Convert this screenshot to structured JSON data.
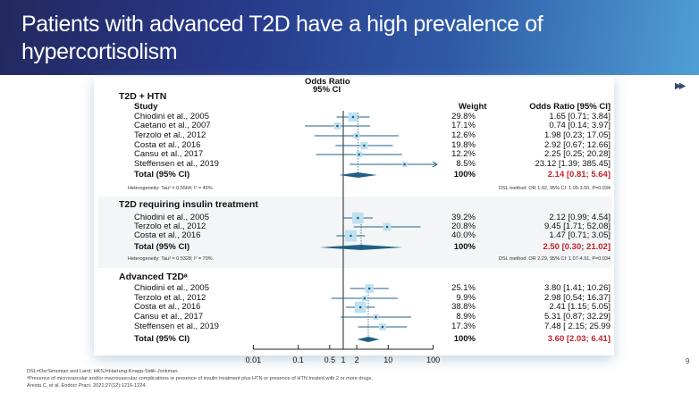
{
  "title": "Patients with advanced T2D have a high prevalence of hypercortisolism",
  "page_number": "9",
  "next_icon": "fast-forward-icon",
  "footnotes": [
    "DSL=DerSimonian and Laird; HKSJ=Hartung-Knapp-Sidik-Jonkman.",
    "ᵃPresence of microvascular and/or macrovascular complications or presence of insulin treatment plus HTN or presence of HTN treated with 2 or more drugs.",
    "Aresta C, et al. Endocr Pract. 2021;27(12):1216-1224."
  ],
  "chart_data": {
    "type": "forest",
    "title": "Odds Ratio",
    "subtitle": "95% CI",
    "study_header": "Study",
    "weight_header": "Weight",
    "or_header": "Odds Ratio [95% CI]",
    "x_scale": "log",
    "xlim": [
      0.01,
      100
    ],
    "x_ticks": [
      "0.01",
      "0.1",
      "0.5",
      "1",
      "2",
      "10",
      "100"
    ],
    "x_tick_values": [
      0.01,
      0.1,
      0.5,
      1,
      2,
      10,
      100
    ],
    "colors": {
      "marker": "#1f5f86",
      "box": "#bfe0f0",
      "pooled": "#1f5f86",
      "total_text": "#c0252b"
    },
    "sections": [
      {
        "name": "T2D + HTN",
        "studies": [
          {
            "study": "Chiodini et al., 2005",
            "weight": "29.8%",
            "or": 1.65,
            "lo": 0.71,
            "hi": 3.84,
            "label": "1.65 [0.71; 3.84]"
          },
          {
            "study": "Caetano et al., 2007",
            "weight": "17.1%",
            "or": 0.74,
            "lo": 0.14,
            "hi": 3.97,
            "label": "0.74 [0.14; 3.97]"
          },
          {
            "study": "Terzolo et al., 2012",
            "weight": "12.6%",
            "or": 1.98,
            "lo": 0.23,
            "hi": 17.05,
            "label": "1.98 [0.23; 17.05]"
          },
          {
            "study": "Costa et al., 2016",
            "weight": "19.8%",
            "or": 2.92,
            "lo": 0.67,
            "hi": 12.66,
            "label": "2.92 [0.67; 12.66]"
          },
          {
            "study": "Cansu et al., 2017",
            "weight": "12.2%",
            "or": 2.25,
            "lo": 0.25,
            "hi": 20.28,
            "label": "2.25 [0.25; 20.28]"
          },
          {
            "study": "Steffensen et al., 2019",
            "weight": "8.5%",
            "or": 23.12,
            "lo": 1.39,
            "hi": 385.45,
            "label": "23.12 [1.39; 385.45]"
          }
        ],
        "total": {
          "label": "Total (95% CI)",
          "weight": "100%",
          "or": 2.14,
          "lo": 0.81,
          "hi": 5.64,
          "text": "2.14 [0.81; 5.64]"
        },
        "heterogeneity": "Heterogeneity: Tau² = 0.5564; I² = 45%",
        "method": "DSL method: OR 1.92, 95% CI: 1.05-3.50, P=0.034"
      },
      {
        "name": "T2D requiring insulin treatment",
        "studies": [
          {
            "study": "Chiodini et al., 2005",
            "weight": "39.2%",
            "or": 2.12,
            "lo": 0.99,
            "hi": 4.54,
            "label": "2.12 [0.99; 4.54]"
          },
          {
            "study": "Terzolo et al., 2012",
            "weight": "20.8%",
            "or": 9.45,
            "lo": 1.71,
            "hi": 52.08,
            "label": "9.45 [1.71; 52.08]"
          },
          {
            "study": "Costa et al., 2016",
            "weight": "40.0%",
            "or": 1.47,
            "lo": 0.71,
            "hi": 3.05,
            "label": "1.47 [0.71; 3.05]"
          }
        ],
        "total": {
          "label": "Total (95% CI)",
          "weight": "100%",
          "or": 2.5,
          "lo": 0.3,
          "hi": 21.02,
          "text": "2.50 [0.30; 21.02]"
        },
        "heterogeneity": "Heterogeneity: Tau² = 0.5328; I² = 70%",
        "method": "DSL method: OR 2.29, 95% CI: 1.07-4.91, P=0.034"
      },
      {
        "name": "Advanced T2Dᵃ",
        "studies": [
          {
            "study": "Chiodini et al., 2005",
            "weight": "25.1%",
            "or": 3.8,
            "lo": 1.41,
            "hi": 10.26,
            "label": "3.80 [1.41; 10.26]"
          },
          {
            "study": "Terzolo et al., 2012",
            "weight": "9.9%",
            "or": 2.98,
            "lo": 0.54,
            "hi": 16.37,
            "label": "2.98 [0.54; 16.37]"
          },
          {
            "study": "Costa et al., 2016",
            "weight": "38.8%",
            "or": 2.41,
            "lo": 1.15,
            "hi": 5.05,
            "label": "2.41 [1.15; 5.05]"
          },
          {
            "study": "Cansu et al., 2017",
            "weight": "8.9%",
            "or": 5.31,
            "lo": 0.87,
            "hi": 32.29,
            "label": "5.31 [0.87; 32.29]"
          },
          {
            "study": "Steffensen et al., 2019",
            "weight": "17.3%",
            "or": 7.48,
            "lo": 2.15,
            "hi": 25.99,
            "label": "7.48 [ 2.15; 25.99"
          }
        ],
        "total": {
          "label": "Total (95% CI)",
          "weight": "100%",
          "or": 3.6,
          "lo": 2.03,
          "hi": 6.41,
          "text": "3.60 [2.03; 6.41]"
        }
      }
    ]
  }
}
